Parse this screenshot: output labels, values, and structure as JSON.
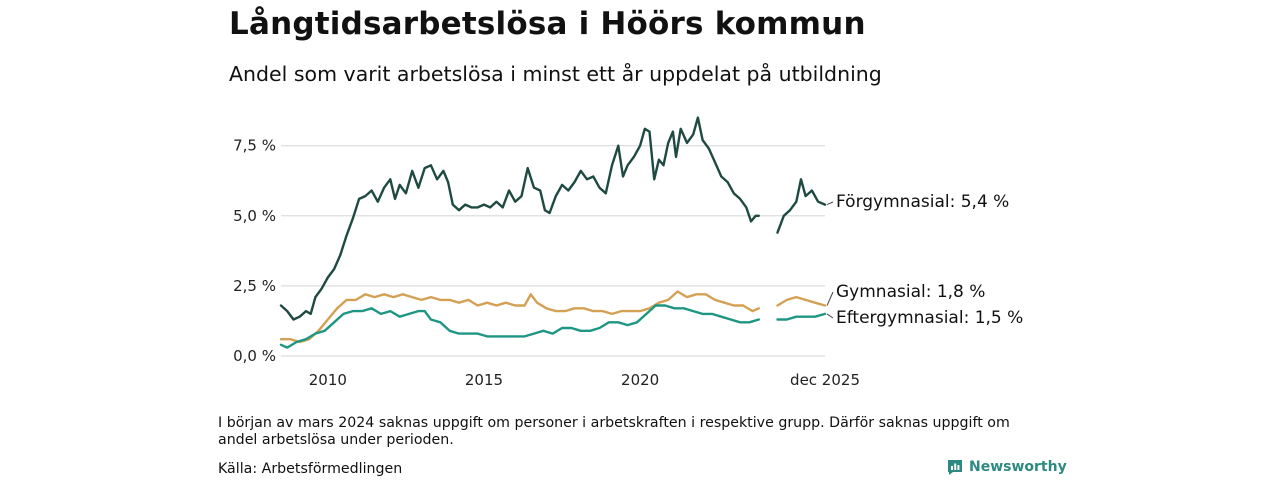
{
  "title": "Långtidsarbetslösa i Höörs kommun",
  "subtitle": "Andel som varit arbetslösa i minst ett år uppdelat på utbildning",
  "note": "I början av mars 2024 saknas uppgift om personer i arbetskraften i respektive grupp. Därför saknas uppgift om andel arbetslösa under perioden.",
  "source": "Källa: Arbetsförmedlingen",
  "brand": {
    "name": "Newsworthy",
    "icon": "newsworthy-logo-icon",
    "color": "#2c8a80"
  },
  "chart_data": {
    "type": "line",
    "xlabel": "",
    "ylabel": "",
    "x_range": [
      2008.5,
      2025.92
    ],
    "ylim": [
      0,
      8.7
    ],
    "y_ticks": [
      {
        "value": 0,
        "label": "0,0 %"
      },
      {
        "value": 2.5,
        "label": "2,5 %"
      },
      {
        "value": 5,
        "label": "5,0 %"
      },
      {
        "value": 7.5,
        "label": "7,5 %"
      }
    ],
    "x_ticks": [
      {
        "value": 2010,
        "label": "2010"
      },
      {
        "value": 2015,
        "label": "2015"
      },
      {
        "value": 2020,
        "label": "2020"
      },
      {
        "value": 2025.92,
        "label": "dec 2025"
      }
    ],
    "grid": true,
    "gap": [
      2024.05,
      2024.4
    ],
    "series": [
      {
        "name": "Förgymnasial",
        "end_label": "Förgymnasial: 5,4 %",
        "color": "#1f4a42",
        "points": [
          [
            2008.5,
            1.8
          ],
          [
            2008.7,
            1.6
          ],
          [
            2008.9,
            1.3
          ],
          [
            2009.1,
            1.4
          ],
          [
            2009.3,
            1.6
          ],
          [
            2009.45,
            1.5
          ],
          [
            2009.6,
            2.1
          ],
          [
            2009.8,
            2.4
          ],
          [
            2010.0,
            2.8
          ],
          [
            2010.2,
            3.1
          ],
          [
            2010.4,
            3.6
          ],
          [
            2010.6,
            4.3
          ],
          [
            2010.8,
            4.9
          ],
          [
            2011.0,
            5.6
          ],
          [
            2011.2,
            5.7
          ],
          [
            2011.4,
            5.9
          ],
          [
            2011.6,
            5.5
          ],
          [
            2011.8,
            6.0
          ],
          [
            2012.0,
            6.3
          ],
          [
            2012.15,
            5.6
          ],
          [
            2012.3,
            6.1
          ],
          [
            2012.5,
            5.8
          ],
          [
            2012.7,
            6.6
          ],
          [
            2012.9,
            6.0
          ],
          [
            2013.1,
            6.7
          ],
          [
            2013.3,
            6.8
          ],
          [
            2013.5,
            6.3
          ],
          [
            2013.7,
            6.6
          ],
          [
            2013.85,
            6.2
          ],
          [
            2014.0,
            5.4
          ],
          [
            2014.2,
            5.2
          ],
          [
            2014.4,
            5.4
          ],
          [
            2014.6,
            5.3
          ],
          [
            2014.8,
            5.3
          ],
          [
            2015.0,
            5.4
          ],
          [
            2015.2,
            5.3
          ],
          [
            2015.4,
            5.5
          ],
          [
            2015.6,
            5.3
          ],
          [
            2015.8,
            5.9
          ],
          [
            2016.0,
            5.5
          ],
          [
            2016.2,
            5.7
          ],
          [
            2016.4,
            6.7
          ],
          [
            2016.6,
            6.0
          ],
          [
            2016.8,
            5.9
          ],
          [
            2016.95,
            5.2
          ],
          [
            2017.1,
            5.1
          ],
          [
            2017.3,
            5.7
          ],
          [
            2017.5,
            6.1
          ],
          [
            2017.7,
            5.9
          ],
          [
            2017.9,
            6.2
          ],
          [
            2018.1,
            6.6
          ],
          [
            2018.3,
            6.3
          ],
          [
            2018.5,
            6.4
          ],
          [
            2018.7,
            6.0
          ],
          [
            2018.9,
            5.8
          ],
          [
            2019.1,
            6.8
          ],
          [
            2019.3,
            7.5
          ],
          [
            2019.45,
            6.4
          ],
          [
            2019.6,
            6.8
          ],
          [
            2019.8,
            7.1
          ],
          [
            2020.0,
            7.5
          ],
          [
            2020.15,
            8.1
          ],
          [
            2020.3,
            8.0
          ],
          [
            2020.45,
            6.3
          ],
          [
            2020.6,
            7.0
          ],
          [
            2020.75,
            6.8
          ],
          [
            2020.9,
            7.6
          ],
          [
            2021.05,
            8.0
          ],
          [
            2021.15,
            7.1
          ],
          [
            2021.3,
            8.1
          ],
          [
            2021.5,
            7.6
          ],
          [
            2021.7,
            7.9
          ],
          [
            2021.85,
            8.5
          ],
          [
            2022.0,
            7.7
          ],
          [
            2022.2,
            7.4
          ],
          [
            2022.4,
            6.9
          ],
          [
            2022.6,
            6.4
          ],
          [
            2022.8,
            6.2
          ],
          [
            2023.0,
            5.8
          ],
          [
            2023.2,
            5.6
          ],
          [
            2023.4,
            5.3
          ],
          [
            2023.55,
            4.8
          ],
          [
            2023.7,
            5.0
          ],
          [
            2023.8,
            5.0
          ],
          [
            2024.05,
            null
          ],
          [
            2024.4,
            4.4
          ],
          [
            2024.6,
            5.0
          ],
          [
            2024.8,
            5.2
          ],
          [
            2025.0,
            5.5
          ],
          [
            2025.15,
            6.3
          ],
          [
            2025.3,
            5.7
          ],
          [
            2025.5,
            5.9
          ],
          [
            2025.7,
            5.5
          ],
          [
            2025.92,
            5.4
          ]
        ]
      },
      {
        "name": "Gymnasial",
        "end_label": "Gymnasial: 1,8 %",
        "color": "#d4a054",
        "points": [
          [
            2008.5,
            0.6
          ],
          [
            2008.8,
            0.6
          ],
          [
            2009.1,
            0.5
          ],
          [
            2009.4,
            0.6
          ],
          [
            2009.7,
            0.9
          ],
          [
            2010.0,
            1.3
          ],
          [
            2010.3,
            1.7
          ],
          [
            2010.6,
            2.0
          ],
          [
            2010.9,
            2.0
          ],
          [
            2011.2,
            2.2
          ],
          [
            2011.5,
            2.1
          ],
          [
            2011.8,
            2.2
          ],
          [
            2012.1,
            2.1
          ],
          [
            2012.4,
            2.2
          ],
          [
            2012.7,
            2.1
          ],
          [
            2013.0,
            2.0
          ],
          [
            2013.3,
            2.1
          ],
          [
            2013.6,
            2.0
          ],
          [
            2013.9,
            2.0
          ],
          [
            2014.2,
            1.9
          ],
          [
            2014.5,
            2.0
          ],
          [
            2014.8,
            1.8
          ],
          [
            2015.1,
            1.9
          ],
          [
            2015.4,
            1.8
          ],
          [
            2015.7,
            1.9
          ],
          [
            2016.0,
            1.8
          ],
          [
            2016.3,
            1.8
          ],
          [
            2016.5,
            2.2
          ],
          [
            2016.7,
            1.9
          ],
          [
            2017.0,
            1.7
          ],
          [
            2017.3,
            1.6
          ],
          [
            2017.6,
            1.6
          ],
          [
            2017.9,
            1.7
          ],
          [
            2018.2,
            1.7
          ],
          [
            2018.5,
            1.6
          ],
          [
            2018.8,
            1.6
          ],
          [
            2019.1,
            1.5
          ],
          [
            2019.4,
            1.6
          ],
          [
            2019.7,
            1.6
          ],
          [
            2020.0,
            1.6
          ],
          [
            2020.3,
            1.7
          ],
          [
            2020.6,
            1.9
          ],
          [
            2020.9,
            2.0
          ],
          [
            2021.2,
            2.3
          ],
          [
            2021.5,
            2.1
          ],
          [
            2021.8,
            2.2
          ],
          [
            2022.1,
            2.2
          ],
          [
            2022.4,
            2.0
          ],
          [
            2022.7,
            1.9
          ],
          [
            2023.0,
            1.8
          ],
          [
            2023.3,
            1.8
          ],
          [
            2023.6,
            1.6
          ],
          [
            2023.8,
            1.7
          ],
          [
            2024.05,
            null
          ],
          [
            2024.4,
            1.8
          ],
          [
            2024.7,
            2.0
          ],
          [
            2025.0,
            2.1
          ],
          [
            2025.3,
            2.0
          ],
          [
            2025.6,
            1.9
          ],
          [
            2025.92,
            1.8
          ]
        ]
      },
      {
        "name": "Eftergymnasial",
        "end_label": "Eftergymnasial: 1,5 %",
        "color": "#1f9683",
        "points": [
          [
            2008.5,
            0.4
          ],
          [
            2008.7,
            0.3
          ],
          [
            2009.0,
            0.5
          ],
          [
            2009.3,
            0.6
          ],
          [
            2009.6,
            0.8
          ],
          [
            2009.9,
            0.9
          ],
          [
            2010.2,
            1.2
          ],
          [
            2010.5,
            1.5
          ],
          [
            2010.8,
            1.6
          ],
          [
            2011.1,
            1.6
          ],
          [
            2011.4,
            1.7
          ],
          [
            2011.7,
            1.5
          ],
          [
            2012.0,
            1.6
          ],
          [
            2012.3,
            1.4
          ],
          [
            2012.6,
            1.5
          ],
          [
            2012.9,
            1.6
          ],
          [
            2013.1,
            1.6
          ],
          [
            2013.3,
            1.3
          ],
          [
            2013.6,
            1.2
          ],
          [
            2013.9,
            0.9
          ],
          [
            2014.2,
            0.8
          ],
          [
            2014.5,
            0.8
          ],
          [
            2014.8,
            0.8
          ],
          [
            2015.1,
            0.7
          ],
          [
            2015.4,
            0.7
          ],
          [
            2015.7,
            0.7
          ],
          [
            2016.0,
            0.7
          ],
          [
            2016.3,
            0.7
          ],
          [
            2016.6,
            0.8
          ],
          [
            2016.9,
            0.9
          ],
          [
            2017.2,
            0.8
          ],
          [
            2017.5,
            1.0
          ],
          [
            2017.8,
            1.0
          ],
          [
            2018.1,
            0.9
          ],
          [
            2018.4,
            0.9
          ],
          [
            2018.7,
            1.0
          ],
          [
            2019.0,
            1.2
          ],
          [
            2019.3,
            1.2
          ],
          [
            2019.6,
            1.1
          ],
          [
            2019.9,
            1.2
          ],
          [
            2020.2,
            1.5
          ],
          [
            2020.5,
            1.8
          ],
          [
            2020.8,
            1.8
          ],
          [
            2021.1,
            1.7
          ],
          [
            2021.4,
            1.7
          ],
          [
            2021.7,
            1.6
          ],
          [
            2022.0,
            1.5
          ],
          [
            2022.3,
            1.5
          ],
          [
            2022.6,
            1.4
          ],
          [
            2022.9,
            1.3
          ],
          [
            2023.2,
            1.2
          ],
          [
            2023.5,
            1.2
          ],
          [
            2023.8,
            1.3
          ],
          [
            2024.05,
            null
          ],
          [
            2024.4,
            1.3
          ],
          [
            2024.7,
            1.3
          ],
          [
            2025.0,
            1.4
          ],
          [
            2025.3,
            1.4
          ],
          [
            2025.6,
            1.4
          ],
          [
            2025.92,
            1.5
          ]
        ]
      }
    ]
  }
}
